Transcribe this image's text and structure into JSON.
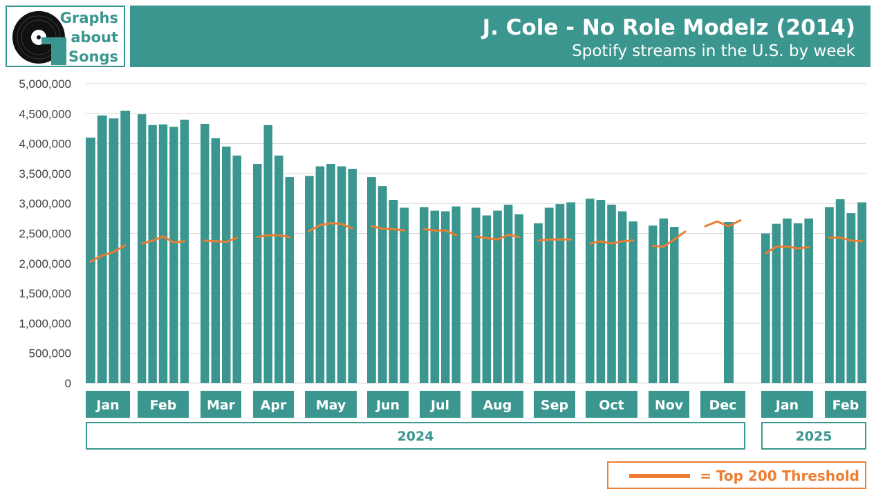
{
  "header": {
    "logo_lines": [
      "Graphs",
      "about",
      "Songs"
    ],
    "title": "J. Cole - No Role Modelz (2014)",
    "subtitle": "Spotify streams in the U.S. by week"
  },
  "legend": {
    "label": "= Top 200 Threshold"
  },
  "colors": {
    "bars": "#3a968e",
    "threshold": "#ed7d31"
  },
  "chart_data": {
    "type": "bar",
    "title": "J. Cole - No Role Modelz (2014)",
    "subtitle": "Spotify streams in the U.S. by week",
    "ylim": [
      0,
      5000000
    ],
    "yticks": [
      "0",
      "500,000",
      "1,000,000",
      "1,500,000",
      "2,000,000",
      "2,500,000",
      "3,000,000",
      "3,500,000",
      "4,000,000",
      "4,500,000",
      "5,000,000"
    ],
    "grid": true,
    "years": [
      {
        "label": "2024",
        "months": [
          "Jan",
          "Feb",
          "Mar",
          "Apr",
          "May",
          "Jun",
          "Jul",
          "Aug",
          "Sep",
          "Oct",
          "Nov",
          "Dec"
        ]
      },
      {
        "label": "2025",
        "months": [
          "Jan",
          "Feb"
        ]
      }
    ],
    "months": [
      {
        "label": "Jan",
        "streams": [
          4100000,
          4470000,
          4420000,
          4550000
        ],
        "threshold": [
          2030000,
          2130000,
          2190000,
          2300000
        ]
      },
      {
        "label": "Feb",
        "streams": [
          4490000,
          4310000,
          4320000,
          4280000,
          4400000
        ],
        "threshold": [
          2330000,
          2380000,
          2450000,
          2350000,
          2370000
        ]
      },
      {
        "label": "Mar",
        "streams": [
          4330000,
          4090000,
          3950000,
          3800000
        ],
        "threshold": [
          2380000,
          2370000,
          2360000,
          2430000
        ]
      },
      {
        "label": "Apr",
        "streams": [
          3660000,
          4310000,
          3800000,
          3440000
        ],
        "threshold": [
          2440000,
          2470000,
          2470000,
          2440000
        ]
      },
      {
        "label": "May",
        "streams": [
          3460000,
          3620000,
          3660000,
          3620000,
          3580000
        ],
        "threshold": [
          2540000,
          2640000,
          2670000,
          2660000,
          2580000
        ]
      },
      {
        "label": "Jun",
        "streams": [
          3440000,
          3290000,
          3060000,
          2930000
        ],
        "threshold": [
          2620000,
          2580000,
          2570000,
          2550000
        ]
      },
      {
        "label": "Jul",
        "streams": [
          2940000,
          2880000,
          2870000,
          2950000
        ],
        "threshold": [
          2570000,
          2550000,
          2550000,
          2470000
        ]
      },
      {
        "label": "Aug",
        "streams": [
          2930000,
          2800000,
          2880000,
          2980000,
          2820000
        ],
        "threshold": [
          2450000,
          2420000,
          2400000,
          2480000,
          2440000
        ]
      },
      {
        "label": "Sep",
        "streams": [
          2670000,
          2930000,
          2990000,
          3020000
        ],
        "threshold": [
          2380000,
          2400000,
          2400000,
          2400000
        ]
      },
      {
        "label": "Oct",
        "streams": [
          3080000,
          3060000,
          2980000,
          2870000,
          2700000
        ],
        "threshold": [
          2330000,
          2370000,
          2330000,
          2370000,
          2380000
        ]
      },
      {
        "label": "Nov",
        "streams": [
          2630000,
          2750000,
          2610000,
          null
        ],
        "threshold": [
          2290000,
          2280000,
          2400000,
          2530000
        ]
      },
      {
        "label": "Dec",
        "streams": [
          null,
          null,
          2690000,
          null
        ],
        "threshold": [
          2620000,
          2700000,
          2620000,
          2720000
        ]
      },
      {
        "label": "Jan",
        "streams": [
          2500000,
          2660000,
          2750000,
          2670000,
          2750000
        ],
        "threshold": [
          2170000,
          2280000,
          2280000,
          2250000,
          2270000
        ]
      },
      {
        "label": "Feb",
        "streams": [
          2940000,
          3070000,
          2840000,
          3020000
        ],
        "threshold": [
          2430000,
          2430000,
          2380000,
          2370000
        ]
      }
    ]
  }
}
